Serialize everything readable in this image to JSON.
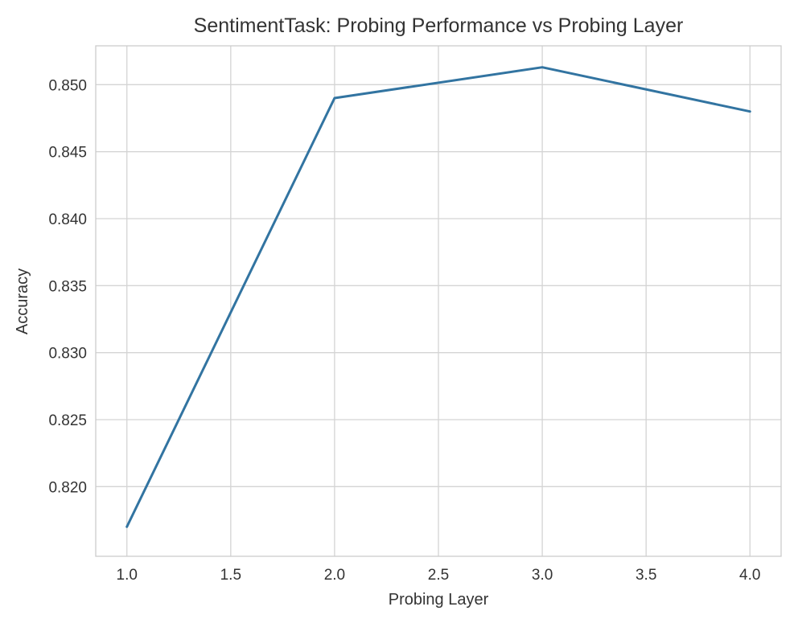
{
  "chart_data": {
    "type": "line",
    "title": "SentimentTask: Probing Performance vs Probing Layer",
    "xlabel": "Probing Layer",
    "ylabel": "Accuracy",
    "xlim": [
      0.85,
      4.15
    ],
    "ylim": [
      0.8148,
      0.8529
    ],
    "x_ticks": [
      "1.0",
      "1.5",
      "2.0",
      "2.5",
      "3.0",
      "3.5",
      "4.0"
    ],
    "y_ticks": [
      "0.820",
      "0.825",
      "0.830",
      "0.835",
      "0.840",
      "0.845",
      "0.850"
    ],
    "grid": true,
    "legend": "none",
    "series": [
      {
        "color": "#3274a1",
        "x": [
          1.0,
          2.0,
          3.0,
          4.0
        ],
        "y": [
          0.817,
          0.849,
          0.8513,
          0.848
        ]
      }
    ]
  }
}
